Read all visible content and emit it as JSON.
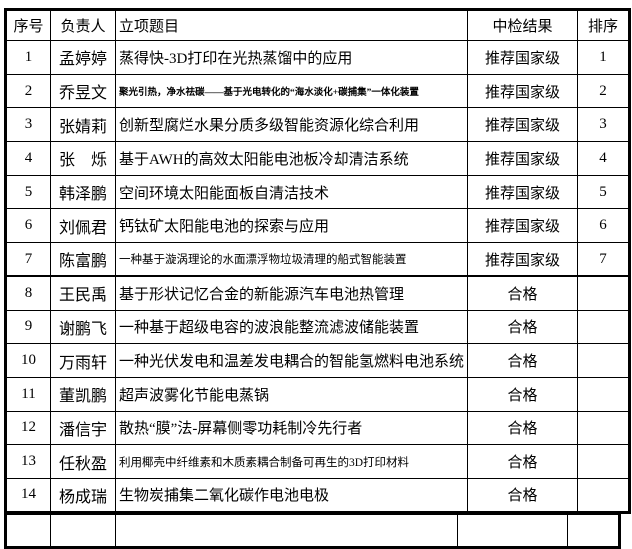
{
  "table": {
    "headers": [
      "序号",
      "负责人",
      "立项题目",
      "中检结果",
      "排序"
    ],
    "rows": [
      {
        "no": "1",
        "leader": "孟婷婷",
        "title": "蒸得快-3D打印在光热蒸馏中的应用",
        "result": "推荐国家级",
        "rank": "1"
      },
      {
        "no": "2",
        "leader": "乔昱文",
        "title": "聚光引热，净水祛碳——基于光电转化的“海水淡化+碳捕集”一体化装置",
        "result": "推荐国家级",
        "rank": "2"
      },
      {
        "no": "3",
        "leader": "张婧莉",
        "title": "创新型腐烂水果分质多级智能资源化综合利用",
        "result": "推荐国家级",
        "rank": "3"
      },
      {
        "no": "4",
        "leader": "张　烁",
        "title": "基于AWH的高效太阳能电池板冷却清洁系统",
        "result": "推荐国家级",
        "rank": "4"
      },
      {
        "no": "5",
        "leader": "韩泽鹏",
        "title": "空间环境太阳能面板自清洁技术",
        "result": "推荐国家级",
        "rank": "5"
      },
      {
        "no": "6",
        "leader": "刘佩君",
        "title": "钙钛矿太阳能电池的探索与应用",
        "result": "推荐国家级",
        "rank": "6"
      },
      {
        "no": "7",
        "leader": "陈富鹏",
        "title": "一种基于漩涡理论的水面漂浮物垃圾清理的船式智能装置",
        "result": "推荐国家级",
        "rank": "7"
      },
      {
        "no": "8",
        "leader": "王民禹",
        "title": "基于形状记忆合金的新能源汽车电池热管理",
        "result": "合格",
        "rank": ""
      },
      {
        "no": "9",
        "leader": "谢鹏飞",
        "title": "一种基于超级电容的波浪能整流滤波储能装置",
        "result": "合格",
        "rank": ""
      },
      {
        "no": "10",
        "leader": "万雨轩",
        "title": "一种光伏发电和温差发电耦合的智能氢燃料电池系统",
        "result": "合格",
        "rank": ""
      },
      {
        "no": "11",
        "leader": "董凯鹏",
        "title": "超声波雾化节能电蒸锅",
        "result": "合格",
        "rank": ""
      },
      {
        "no": "12",
        "leader": "潘信宇",
        "title": "散热“膜”法-屏幕侧零功耗制冷先行者",
        "result": "合格",
        "rank": ""
      },
      {
        "no": "13",
        "leader": "任秋盈",
        "title": "利用椰壳中纤维素和木质素耦合制备可再生的3D打印材料",
        "result": "合格",
        "rank": ""
      },
      {
        "no": "14",
        "leader": "杨成瑞",
        "title": "生物炭捕集二氧化碳作电池电极",
        "result": "合格",
        "rank": ""
      }
    ]
  },
  "colors": {
    "border": "#000000",
    "background": "#ffffff",
    "text": "#000000"
  }
}
